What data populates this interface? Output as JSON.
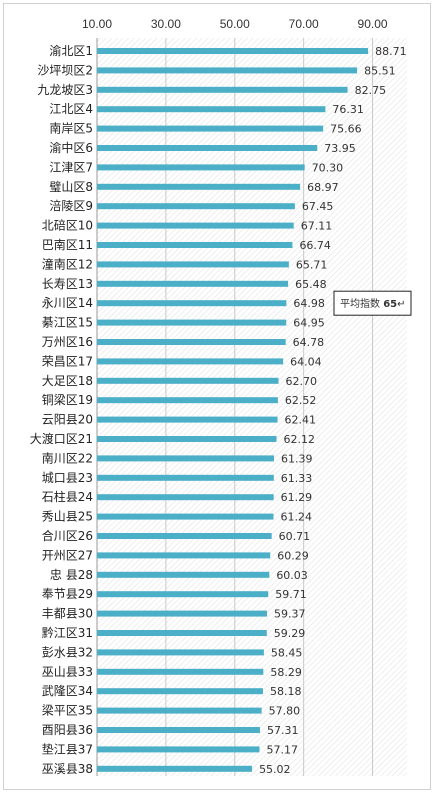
{
  "colors": {
    "bar": "#4BAFC8",
    "grid": "#c8c8c8",
    "callout_border": "#222222"
  },
  "chart_data": {
    "type": "bar",
    "orientation": "horizontal",
    "title": "",
    "xlabel": "",
    "ylabel": "",
    "xlim": [
      10,
      100
    ],
    "ticks": [
      "10.00",
      "30.00",
      "50.00",
      "70.00",
      "90.00"
    ],
    "tick_values": [
      10,
      30,
      50,
      70,
      90
    ],
    "grid": true,
    "categories": [
      "渝北区1",
      "沙坪坝区2",
      "九龙坡区3",
      "江北区4",
      "南岸区5",
      "渝中区6",
      "江津区7",
      "璧山区8",
      "涪陵区9",
      "北碚区10",
      "巴南区11",
      "潼南区12",
      "长寿区13",
      "永川区14",
      "綦江区15",
      "万州区16",
      "荣昌区17",
      "大足区18",
      "铜梁区19",
      "云阳县20",
      "大渡口区21",
      "南川区22",
      "城口县23",
      "石柱县24",
      "秀山县25",
      "合川区26",
      "开州区27",
      "忠 县28",
      "奉节县29",
      "丰都县30",
      "黔江区31",
      "彭水县32",
      "巫山县33",
      "武隆区34",
      "梁平区35",
      "酉阳县36",
      "垫江县37",
      "巫溪县38"
    ],
    "values": [
      88.71,
      85.51,
      82.75,
      76.31,
      75.66,
      73.95,
      70.3,
      68.97,
      67.45,
      67.11,
      66.74,
      65.71,
      65.48,
      64.98,
      64.95,
      64.78,
      64.04,
      62.7,
      62.52,
      62.41,
      62.12,
      61.39,
      61.33,
      61.29,
      61.24,
      60.71,
      60.29,
      60.03,
      59.71,
      59.37,
      59.29,
      58.45,
      58.29,
      58.18,
      57.8,
      57.31,
      57.17,
      55.02
    ],
    "value_labels": [
      "88.71",
      "85.51",
      "82.75",
      "76.31",
      "75.66",
      "73.95",
      "70.30",
      "68.97",
      "67.45",
      "67.11",
      "66.74",
      "65.71",
      "65.48",
      "64.98",
      "64.95",
      "64.78",
      "64.04",
      "62.70",
      "62.52",
      "62.41",
      "62.12",
      "61.39",
      "61.33",
      "61.29",
      "61.24",
      "60.71",
      "60.29",
      "60.03",
      "59.71",
      "59.37",
      "59.29",
      "58.45",
      "58.29",
      "58.18",
      "57.80",
      "57.31",
      "57.17",
      "55.02"
    ],
    "annotations": [
      {
        "text_prefix": "平均指数 ",
        "text_value": "65",
        "text_suffix": "↵",
        "value": 65
      }
    ]
  }
}
